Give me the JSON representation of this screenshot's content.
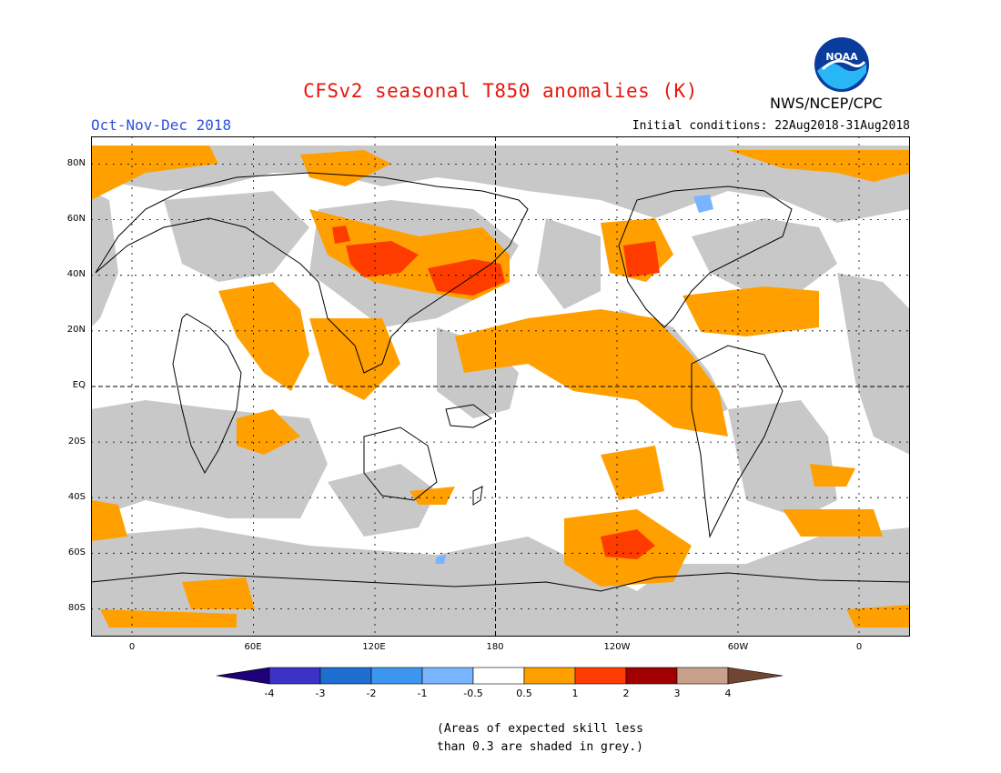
{
  "header": {
    "title": "CFSv2 seasonal T850 anomalies (K)",
    "agency": "NWS/NCEP/CPC",
    "logo_text": "NOAA",
    "period": "Oct-Nov-Dec 2018",
    "initial_conditions": "Initial conditions: 22Aug2018-31Aug2018"
  },
  "map": {
    "lat_labels": [
      "80N",
      "60N",
      "40N",
      "20N",
      "EQ",
      "20S",
      "40S",
      "60S",
      "80S"
    ],
    "lon_labels": [
      "0",
      "60E",
      "120E",
      "180",
      "120W",
      "60W",
      "0"
    ],
    "colors": {
      "ocean_background": "#ffffff",
      "low_skill_grey": "#c8c8c8",
      "anom_0_5_to_1": "#ffa000",
      "anom_1_to_2": "#ff3c00",
      "anom_neg_1_to_neg_0_5": "#78b4ff",
      "coastline": "#000000"
    }
  },
  "colorbar": {
    "labels": [
      "-4",
      "-3",
      "-2",
      "-1",
      "-0.5",
      "0.5",
      "1",
      "2",
      "3",
      "4"
    ],
    "colors": [
      "#1e0078",
      "#3c32c8",
      "#1e6ed2",
      "#3c96f0",
      "#78b4ff",
      "#ffffff",
      "#ffa000",
      "#ff3c00",
      "#a00000",
      "#c8a08c",
      "#6e4632"
    ]
  },
  "note": {
    "line1": "(Areas of expected skill less",
    "line2": "than 0.3 are shaded in grey.)"
  }
}
